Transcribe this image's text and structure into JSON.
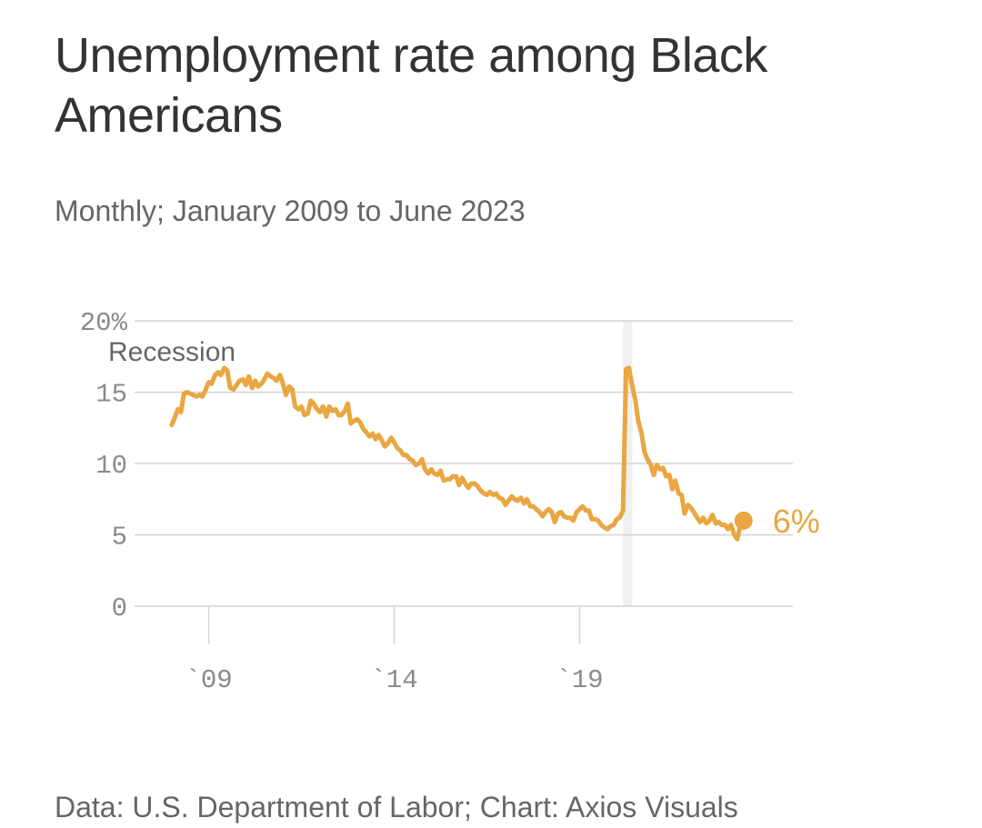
{
  "title": "Unemployment rate among Black Americans",
  "subtitle": "Monthly; January 2009 to June 2023",
  "source": "Data: U.S. Department of Labor; Chart: Axios Visuals",
  "colors": {
    "line": "#e9a641",
    "grid": "#d4d4d4",
    "recession": "#f0f0f0",
    "text": "#333333",
    "muted": "#8a8a8a"
  },
  "chart_data": {
    "type": "line",
    "title": "Unemployment rate among Black Americans",
    "xlabel": "",
    "ylabel": "",
    "ylim": [
      0,
      20
    ],
    "xlim": [
      2007,
      2024.75
    ],
    "y_ticks": [
      {
        "value": 20,
        "label": "20%"
      },
      {
        "value": 15,
        "label": "15"
      },
      {
        "value": 10,
        "label": "10"
      },
      {
        "value": 5,
        "label": "5"
      },
      {
        "value": 0,
        "label": "0"
      }
    ],
    "x_ticks": [
      {
        "value": 2009,
        "label": "`09"
      },
      {
        "value": 2014,
        "label": "`14"
      },
      {
        "value": 2019,
        "label": "`19"
      }
    ],
    "recession": {
      "label": "Recession",
      "start": 2020.17,
      "end": 2020.42
    },
    "end_label": "6%",
    "end_point": {
      "x": 2023.42,
      "y": 6.0
    },
    "series": [
      {
        "name": "Black unemployment rate",
        "points": [
          [
            2008.0,
            12.7
          ],
          [
            2008.08,
            13.2
          ],
          [
            2008.17,
            13.8
          ],
          [
            2008.25,
            13.6
          ],
          [
            2008.33,
            14.9
          ],
          [
            2008.42,
            15.0
          ],
          [
            2008.5,
            14.9
          ],
          [
            2008.58,
            14.8
          ],
          [
            2008.67,
            14.7
          ],
          [
            2008.75,
            14.8
          ],
          [
            2008.83,
            14.7
          ],
          [
            2008.92,
            15.2
          ],
          [
            2009.0,
            15.7
          ],
          [
            2009.08,
            15.6
          ],
          [
            2009.17,
            16.2
          ],
          [
            2009.25,
            16.4
          ],
          [
            2009.33,
            16.2
          ],
          [
            2009.42,
            16.7
          ],
          [
            2009.5,
            16.5
          ],
          [
            2009.58,
            15.3
          ],
          [
            2009.67,
            15.2
          ],
          [
            2009.75,
            15.5
          ],
          [
            2009.83,
            15.8
          ],
          [
            2009.92,
            15.9
          ],
          [
            2010.0,
            15.5
          ],
          [
            2010.08,
            16.1
          ],
          [
            2010.17,
            15.3
          ],
          [
            2010.25,
            15.8
          ],
          [
            2010.33,
            15.4
          ],
          [
            2010.42,
            15.6
          ],
          [
            2010.5,
            15.9
          ],
          [
            2010.58,
            16.3
          ],
          [
            2010.67,
            16.1
          ],
          [
            2010.75,
            16.0
          ],
          [
            2010.83,
            15.8
          ],
          [
            2010.92,
            16.2
          ],
          [
            2011.0,
            15.6
          ],
          [
            2011.08,
            14.8
          ],
          [
            2011.17,
            15.4
          ],
          [
            2011.25,
            15.2
          ],
          [
            2011.33,
            14.0
          ],
          [
            2011.42,
            13.8
          ],
          [
            2011.5,
            14.0
          ],
          [
            2011.58,
            13.4
          ],
          [
            2011.67,
            13.5
          ],
          [
            2011.75,
            14.4
          ],
          [
            2011.83,
            14.2
          ],
          [
            2011.92,
            13.8
          ],
          [
            2012.0,
            13.6
          ],
          [
            2012.08,
            14.0
          ],
          [
            2012.17,
            13.3
          ],
          [
            2012.25,
            14.0
          ],
          [
            2012.33,
            13.7
          ],
          [
            2012.42,
            13.8
          ],
          [
            2012.5,
            13.4
          ],
          [
            2012.58,
            13.4
          ],
          [
            2012.67,
            13.7
          ],
          [
            2012.75,
            14.2
          ],
          [
            2012.83,
            12.8
          ],
          [
            2012.92,
            13.0
          ],
          [
            2013.0,
            13.1
          ],
          [
            2013.08,
            12.9
          ],
          [
            2013.17,
            12.4
          ],
          [
            2013.25,
            12.2
          ],
          [
            2013.33,
            11.9
          ],
          [
            2013.42,
            12.1
          ],
          [
            2013.5,
            11.7
          ],
          [
            2013.58,
            12.0
          ],
          [
            2013.67,
            11.6
          ],
          [
            2013.75,
            11.2
          ],
          [
            2013.83,
            11.4
          ],
          [
            2013.92,
            11.8
          ],
          [
            2014.0,
            11.5
          ],
          [
            2014.08,
            11.1
          ],
          [
            2014.17,
            10.9
          ],
          [
            2014.25,
            10.6
          ],
          [
            2014.33,
            10.6
          ],
          [
            2014.42,
            10.3
          ],
          [
            2014.5,
            10.2
          ],
          [
            2014.58,
            9.9
          ],
          [
            2014.67,
            10.0
          ],
          [
            2014.75,
            10.3
          ],
          [
            2014.83,
            9.6
          ],
          [
            2014.92,
            9.3
          ],
          [
            2015.0,
            9.6
          ],
          [
            2015.08,
            9.3
          ],
          [
            2015.17,
            9.2
          ],
          [
            2015.25,
            9.5
          ],
          [
            2015.33,
            8.8
          ],
          [
            2015.42,
            8.9
          ],
          [
            2015.5,
            8.9
          ],
          [
            2015.58,
            9.1
          ],
          [
            2015.67,
            9.1
          ],
          [
            2015.75,
            8.5
          ],
          [
            2015.83,
            9.0
          ],
          [
            2015.92,
            8.6
          ],
          [
            2016.0,
            8.3
          ],
          [
            2016.08,
            8.6
          ],
          [
            2016.17,
            8.6
          ],
          [
            2016.25,
            8.4
          ],
          [
            2016.33,
            8.1
          ],
          [
            2016.42,
            7.9
          ],
          [
            2016.5,
            7.8
          ],
          [
            2016.58,
            8.0
          ],
          [
            2016.67,
            7.8
          ],
          [
            2016.75,
            7.9
          ],
          [
            2016.83,
            7.6
          ],
          [
            2016.92,
            7.5
          ],
          [
            2017.0,
            7.1
          ],
          [
            2017.08,
            7.4
          ],
          [
            2017.17,
            7.7
          ],
          [
            2017.25,
            7.5
          ],
          [
            2017.33,
            7.4
          ],
          [
            2017.42,
            7.6
          ],
          [
            2017.5,
            7.2
          ],
          [
            2017.58,
            7.5
          ],
          [
            2017.67,
            7.0
          ],
          [
            2017.75,
            7.0
          ],
          [
            2017.83,
            6.8
          ],
          [
            2017.92,
            6.6
          ],
          [
            2018.0,
            6.3
          ],
          [
            2018.08,
            6.6
          ],
          [
            2018.17,
            6.8
          ],
          [
            2018.25,
            6.6
          ],
          [
            2018.33,
            5.9
          ],
          [
            2018.42,
            6.5
          ],
          [
            2018.5,
            6.6
          ],
          [
            2018.58,
            6.3
          ],
          [
            2018.67,
            6.2
          ],
          [
            2018.75,
            6.2
          ],
          [
            2018.83,
            6.0
          ],
          [
            2018.92,
            6.6
          ],
          [
            2019.0,
            6.8
          ],
          [
            2019.08,
            7.0
          ],
          [
            2019.17,
            6.7
          ],
          [
            2019.25,
            6.7
          ],
          [
            2019.33,
            6.1
          ],
          [
            2019.42,
            6.1
          ],
          [
            2019.5,
            6.0
          ],
          [
            2019.58,
            5.7
          ],
          [
            2019.67,
            5.5
          ],
          [
            2019.75,
            5.4
          ],
          [
            2019.83,
            5.6
          ],
          [
            2019.92,
            5.7
          ],
          [
            2020.0,
            6.1
          ],
          [
            2020.08,
            6.2
          ],
          [
            2020.17,
            6.7
          ],
          [
            2020.25,
            16.6
          ],
          [
            2020.33,
            16.7
          ],
          [
            2020.42,
            15.4
          ],
          [
            2020.5,
            14.5
          ],
          [
            2020.58,
            13.0
          ],
          [
            2020.67,
            12.1
          ],
          [
            2020.75,
            10.8
          ],
          [
            2020.83,
            10.3
          ],
          [
            2020.92,
            9.9
          ],
          [
            2021.0,
            9.2
          ],
          [
            2021.08,
            9.9
          ],
          [
            2021.17,
            9.6
          ],
          [
            2021.25,
            9.7
          ],
          [
            2021.33,
            9.1
          ],
          [
            2021.42,
            9.2
          ],
          [
            2021.5,
            8.2
          ],
          [
            2021.58,
            8.8
          ],
          [
            2021.67,
            7.9
          ],
          [
            2021.75,
            7.8
          ],
          [
            2021.83,
            6.5
          ],
          [
            2021.92,
            7.1
          ],
          [
            2022.0,
            6.9
          ],
          [
            2022.08,
            6.6
          ],
          [
            2022.17,
            6.2
          ],
          [
            2022.25,
            5.9
          ],
          [
            2022.33,
            6.2
          ],
          [
            2022.42,
            5.8
          ],
          [
            2022.5,
            6.0
          ],
          [
            2022.58,
            6.4
          ],
          [
            2022.67,
            5.8
          ],
          [
            2022.75,
            5.9
          ],
          [
            2022.83,
            5.7
          ],
          [
            2022.92,
            5.7
          ],
          [
            2023.0,
            5.4
          ],
          [
            2023.08,
            5.7
          ],
          [
            2023.17,
            5.0
          ],
          [
            2023.25,
            4.7
          ],
          [
            2023.33,
            5.6
          ],
          [
            2023.42,
            6.0
          ]
        ]
      }
    ]
  }
}
